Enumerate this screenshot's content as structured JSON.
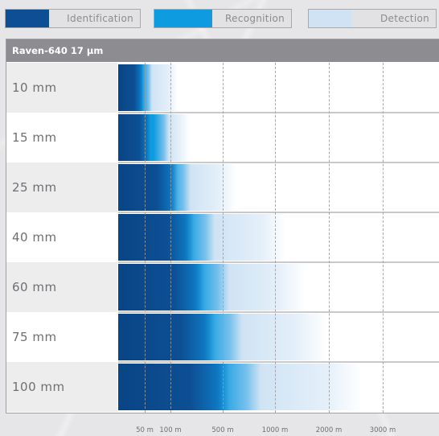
{
  "legend": [
    {
      "label": "Identification",
      "color": "#0d4f94"
    },
    {
      "label": "Recognition",
      "color": "#0f9be0"
    },
    {
      "label": "Detection",
      "color": "#cfe3f4"
    }
  ],
  "chart_data": {
    "type": "bar",
    "title": "Raven-640 17 µm",
    "orientation": "horizontal",
    "stacked": "overlapping ranges",
    "categories": [
      "10 mm",
      "15 mm",
      "25 mm",
      "40 mm",
      "60 mm",
      "75 mm",
      "100 mm"
    ],
    "x_ticks": [
      "50 m",
      "100 m",
      "500 m",
      "1000 m",
      "2000 m",
      "3000 m"
    ],
    "xlabel": "",
    "ylabel": "",
    "series": [
      {
        "name": "Identification",
        "color": "#0d4f94",
        "values": [
          45,
          60,
          150,
          270,
          350,
          430,
          550
        ]
      },
      {
        "name": "Recognition",
        "color": "#0f9be0",
        "values": [
          62,
          95,
          250,
          430,
          550,
          680,
          850
        ]
      },
      {
        "name": "Detection",
        "color": "#cfe3f4",
        "values": [
          148,
          240,
          625,
          1200,
          1550,
          1950,
          2600
        ]
      }
    ],
    "grid": "vertical dashed",
    "legend_position": "top"
  }
}
